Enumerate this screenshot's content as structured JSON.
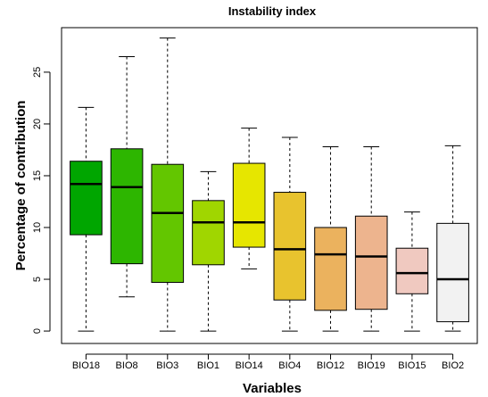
{
  "chart_data": {
    "type": "boxplot",
    "title": "Instability index",
    "xlabel": "Variables",
    "ylabel": "Percentage of contribution",
    "ylim": [
      -1.2,
      29.3
    ],
    "yticks": [
      0,
      5,
      10,
      15,
      20,
      25
    ],
    "grid": false,
    "legend": "none",
    "categories": [
      "BIO18",
      "BIO8",
      "BIO3",
      "BIO1",
      "BIO14",
      "BIO4",
      "BIO12",
      "BIO19",
      "BIO15",
      "BIO2"
    ],
    "boxes": [
      {
        "min": 0,
        "q1": 9.3,
        "median": 14.2,
        "q3": 16.4,
        "max": 21.6,
        "color": "#00A600"
      },
      {
        "min": 3.3,
        "q1": 6.5,
        "median": 13.9,
        "q3": 17.6,
        "max": 26.5,
        "color": "#2DB600"
      },
      {
        "min": 0,
        "q1": 4.7,
        "median": 11.4,
        "q3": 16.1,
        "max": 28.3,
        "color": "#63C600"
      },
      {
        "min": 0,
        "q1": 6.4,
        "median": 10.5,
        "q3": 12.6,
        "max": 15.4,
        "color": "#A0D600"
      },
      {
        "min": 6.0,
        "q1": 8.1,
        "median": 10.5,
        "q3": 16.2,
        "max": 19.6,
        "color": "#E6E600"
      },
      {
        "min": 0,
        "q1": 3.0,
        "median": 7.9,
        "q3": 13.4,
        "max": 18.7,
        "color": "#E8C32E"
      },
      {
        "min": 0,
        "q1": 2.0,
        "median": 7.4,
        "q3": 10.0,
        "max": 17.8,
        "color": "#EBB25E"
      },
      {
        "min": 0,
        "q1": 2.1,
        "median": 7.2,
        "q3": 11.1,
        "max": 17.8,
        "color": "#EDB48E"
      },
      {
        "min": 0,
        "q1": 3.6,
        "median": 5.6,
        "q3": 8.0,
        "max": 11.5,
        "color": "#F0C9C0"
      },
      {
        "min": 0,
        "q1": 0.9,
        "median": 5.0,
        "q3": 10.4,
        "max": 17.9,
        "color": "#F2F2F2"
      }
    ]
  }
}
